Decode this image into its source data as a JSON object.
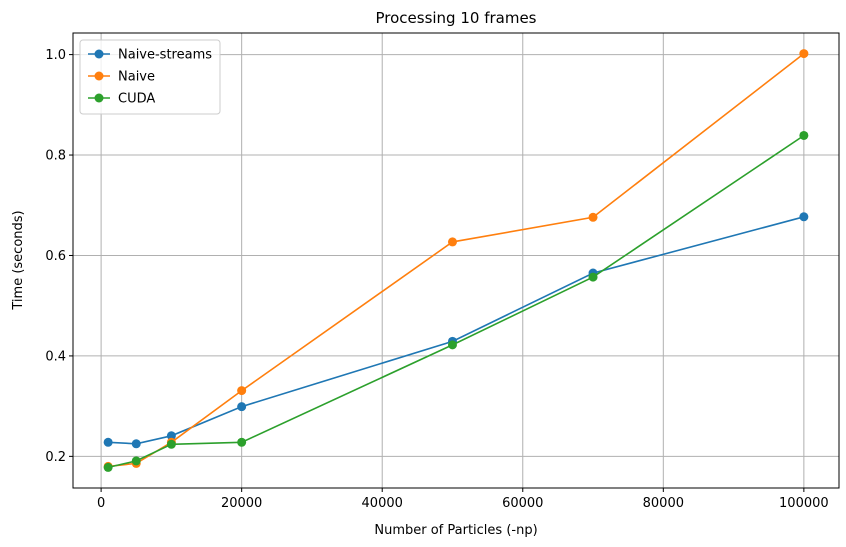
{
  "chart_data": {
    "type": "line",
    "title": "Processing 10 frames",
    "xlabel": "Number of Particles (-np)",
    "ylabel": "Time (seconds)",
    "xlim": [
      -4000,
      105000
    ],
    "ylim": [
      0.137,
      1.043
    ],
    "x_ticks": [
      0,
      20000,
      40000,
      60000,
      80000,
      100000
    ],
    "y_ticks": [
      0.2,
      0.4,
      0.6,
      0.8,
      1.0
    ],
    "x_tick_labels": [
      "0",
      "20000",
      "40000",
      "60000",
      "80000",
      "100000"
    ],
    "y_tick_labels": [
      "0.2",
      "0.4",
      "0.6",
      "0.8",
      "1.0"
    ],
    "grid": true,
    "legend_position": "top-left",
    "x": [
      1000,
      5000,
      10000,
      20000,
      50000,
      70000,
      100000
    ],
    "series": [
      {
        "name": "Naive-streams",
        "color": "#1f77b4",
        "values": [
          0.228,
          0.225,
          0.241,
          0.299,
          0.429,
          0.565,
          0.677
        ]
      },
      {
        "name": "Naive",
        "color": "#ff7f0e",
        "values": [
          0.18,
          0.186,
          0.228,
          0.331,
          0.627,
          0.676,
          1.002
        ]
      },
      {
        "name": "CUDA",
        "color": "#2ca02c",
        "values": [
          0.178,
          0.191,
          0.224,
          0.228,
          0.422,
          0.557,
          0.839
        ]
      }
    ]
  }
}
